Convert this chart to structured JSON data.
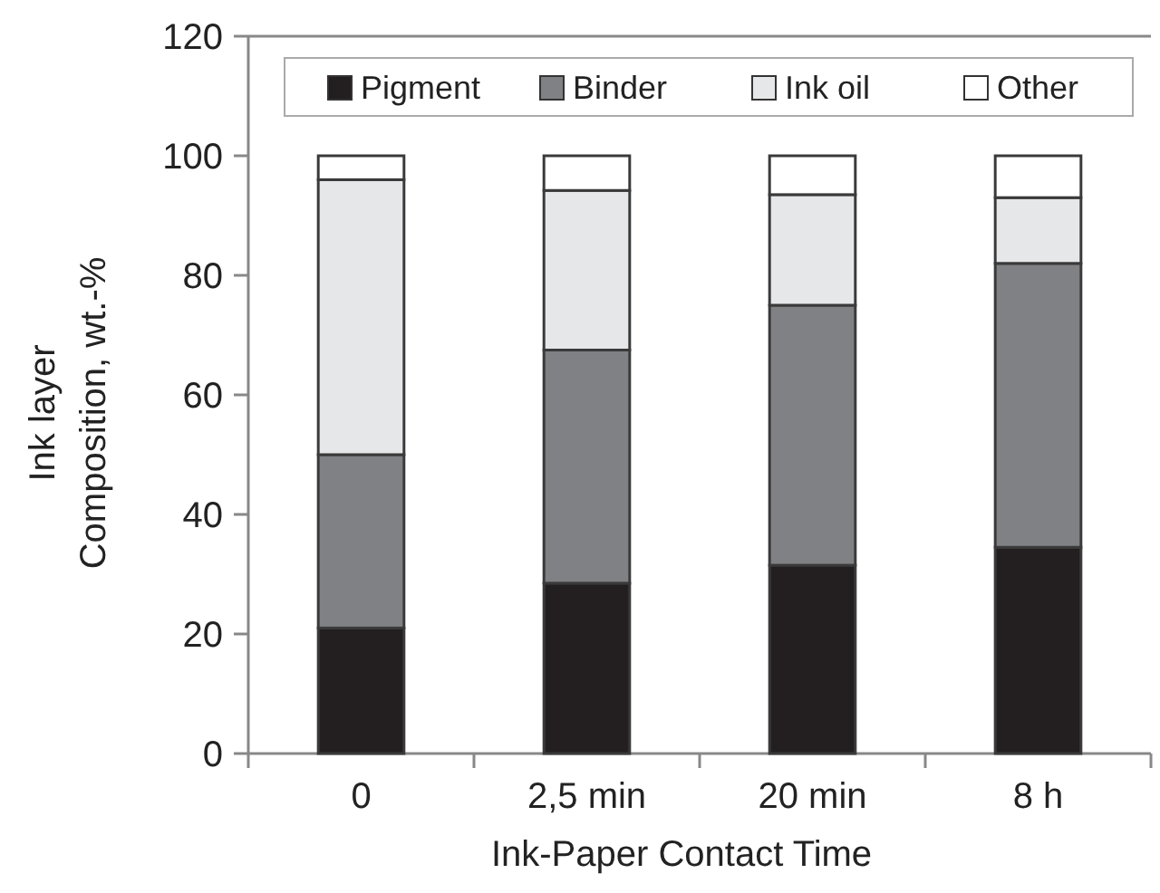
{
  "chart_data": {
    "type": "bar",
    "stacked": true,
    "xlabel": "Ink-Paper Contact Time",
    "ylabel": "Ink layer\nComposition, wt.-%",
    "categories": [
      "0",
      "2,5 min",
      "20 min",
      "8 h"
    ],
    "series": [
      {
        "name": "Pigment",
        "color": "#231f20",
        "values": [
          21,
          28.5,
          31.5,
          34.5
        ]
      },
      {
        "name": "Binder",
        "color": "#808184",
        "values": [
          29,
          39,
          43.5,
          47.5
        ]
      },
      {
        "name": "Ink oil",
        "color": "#e6e7e8",
        "values": [
          46,
          26.7,
          18.5,
          11
        ]
      },
      {
        "name": "Other",
        "color": "#ffffff",
        "values": [
          4,
          5.8,
          6.5,
          7
        ]
      }
    ],
    "ylim": [
      0,
      120
    ],
    "yticks": [
      0,
      20,
      40,
      60,
      80,
      100,
      120
    ],
    "grid": false,
    "legend": "top"
  }
}
